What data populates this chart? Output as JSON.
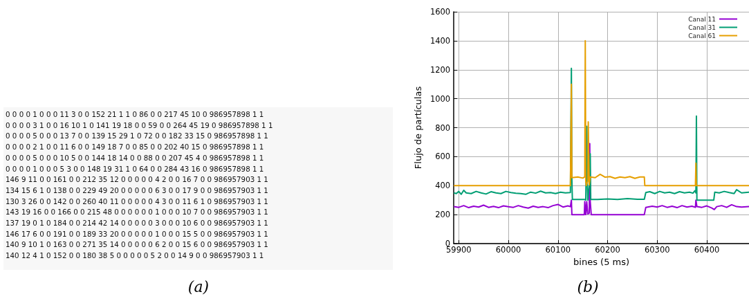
{
  "chart_data": [
    {
      "type": "other",
      "title": "(a)",
      "annotations": [
        "0 0 0 0 1 0 0 0 11 3 0 0 152 21 1 1 0 86 0 0 217 45 10 0 986957898 1 1",
        "0 0 0 0 3 1 0 0 16 10 1 0 141 19 18 0 0 59 0 0 264 45 19 0 986957898 1 1",
        "0 0 0 0 5 0 0 0 13 7 0 0 139 15 29 1 0 72 0 0 182 33 15 0 986957898 1 1",
        "0 0 0 0 2 1 0 0 11 6 0 0 149 18 7 0 0 85 0 0 202 40 15 0 986957898 1 1",
        "0 0 0 0 5 0 0 0 10 5 0 0 144 18 14 0 0 88 0 0 207 45 4 0 986957898 1 1",
        "0 0 0 0 1 0 0 0 5 3 0 0 148 19 31 1 0 64 0 0 284 43 16 0 986957898 1 1",
        "146 9 11 0 0 161 0 0 212 35 12 0 0 0 0 0 4 2 0 0 16 7 0 0 986957903 1 1",
        "134 15 6 1 0 138 0 0 229 49 20 0 0 0 0 0 6 3 0 0 17 9 0 0 986957903 1 1",
        "130 3 26 0 0 142 0 0 260 40 11 0 0 0 0 0 4 3 0 0 11 6 1 0 986957903 1 1",
        "143 19 16 0 0 166 0 0 215 48 0 0 0 0 0 0 1 0 0 0 10 7 0 0 986957903 1 1",
        "137 19 0 1 0 184 0 0 214 42 14 0 0 0 0 0 3 0 0 0 10 6 0 0 986957903 1 1",
        "146 17 6 0 0 191 0 0 189 33 20 0 0 0 0 0 1 0 0 0 15 5 0 0 986957903 1 1",
        "140 9 10 1 0 163 0 0 271 35 14 0 0 0 0 0 6 2 0 0 15 6 0 0 986957903 1 1",
        "140 12 4 1 0 152 0 0 180 38 5 0 0 0 0 0 5 2 0 0 14 9 0 0 986957903 1 1"
      ]
    },
    {
      "type": "line",
      "title": "(b)",
      "xlabel": "bines (5 ms)",
      "ylabel": "Flujo de partículas",
      "xlim": [
        59890,
        60485
      ],
      "xticks": [
        59900,
        60000,
        60100,
        60200,
        60300,
        60400
      ],
      "ylim": [
        0,
        1600
      ],
      "yticks": [
        0,
        200,
        400,
        600,
        800,
        1000,
        1200,
        1400,
        1600
      ],
      "grid": true,
      "legend": "top right",
      "marker": "none",
      "line_style": "solid",
      "series": [
        {
          "name": "Canal 11",
          "color": "#9400d3",
          "x": [
            59890,
            59900,
            59910,
            59920,
            59930,
            59940,
            59950,
            59960,
            59970,
            59980,
            59990,
            60000,
            60010,
            60020,
            60030,
            60040,
            60050,
            60060,
            60070,
            60080,
            60090,
            60100,
            60110,
            60120,
            60125,
            60127,
            60128,
            60153,
            60154,
            60156,
            60158,
            60160,
            60163,
            60164,
            60165,
            60167,
            60274,
            60277,
            60290,
            60300,
            60310,
            60320,
            60330,
            60340,
            60350,
            60360,
            60370,
            60377,
            60378,
            60380,
            60390,
            60400,
            60410,
            60415,
            60420,
            60430,
            60440,
            60450,
            60460,
            60470,
            60485
          ],
          "values": [
            255,
            250,
            262,
            248,
            258,
            252,
            265,
            250,
            257,
            248,
            260,
            254,
            250,
            262,
            252,
            245,
            258,
            250,
            255,
            248,
            262,
            270,
            252,
            260,
            255,
            300,
            200,
            200,
            290,
            200,
            290,
            205,
            210,
            690,
            290,
            200,
            200,
            250,
            258,
            252,
            262,
            250,
            258,
            248,
            262,
            252,
            258,
            250,
            300,
            255,
            250,
            260,
            245,
            235,
            255,
            262,
            250,
            268,
            255,
            252,
            255
          ]
        },
        {
          "name": "Canal 31",
          "color": "#009e73",
          "x": [
            59890,
            59895,
            59900,
            59905,
            59910,
            59915,
            59925,
            59935,
            59945,
            59955,
            59965,
            59975,
            59985,
            59995,
            60005,
            60015,
            60025,
            60035,
            60045,
            60055,
            60065,
            60075,
            60085,
            60095,
            60105,
            60115,
            60125,
            60127,
            60128,
            60129,
            60150,
            60154,
            60156,
            60158,
            60159,
            60160,
            60163,
            60165,
            60166,
            60180,
            60200,
            60220,
            60240,
            60260,
            60274,
            60277,
            60285,
            60295,
            60305,
            60315,
            60325,
            60335,
            60345,
            60355,
            60365,
            60372,
            60376,
            60378,
            60379,
            60380,
            60414,
            60416,
            60425,
            60435,
            60445,
            60455,
            60460,
            60470,
            60485
          ],
          "values": [
            350,
            345,
            360,
            340,
            368,
            350,
            345,
            360,
            350,
            342,
            358,
            350,
            345,
            360,
            352,
            348,
            345,
            340,
            355,
            348,
            362,
            350,
            352,
            345,
            355,
            350,
            352,
            1210,
            440,
            305,
            305,
            305,
            300,
            810,
            430,
            300,
            400,
            620,
            305,
            305,
            308,
            305,
            310,
            306,
            306,
            352,
            358,
            345,
            360,
            350,
            355,
            345,
            358,
            350,
            355,
            348,
            365,
            350,
            880,
            300,
            300,
            355,
            350,
            360,
            352,
            345,
            372,
            350,
            355
          ]
        },
        {
          "name": "Canal 61",
          "color": "#e69f00",
          "x": [
            59890,
            60125,
            60127,
            60128,
            60140,
            60150,
            60154,
            60155,
            60156,
            60157,
            60160,
            60161,
            60163,
            60165,
            60175,
            60185,
            60195,
            60205,
            60215,
            60225,
            60235,
            60245,
            60255,
            60265,
            60274,
            60275,
            60377,
            60378,
            60379,
            60485
          ],
          "values": [
            400,
            400,
            1100,
            455,
            460,
            452,
            460,
            1400,
            430,
            400,
            430,
            840,
            405,
            460,
            455,
            478,
            458,
            462,
            450,
            460,
            455,
            462,
            450,
            460,
            460,
            400,
            400,
            555,
            400,
            400
          ]
        }
      ]
    }
  ]
}
